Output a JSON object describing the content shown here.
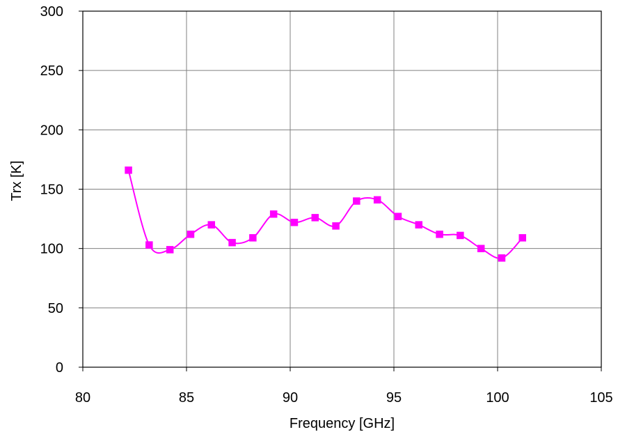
{
  "chart_data": {
    "type": "line",
    "title": "",
    "xlabel": "Frequency [GHz]",
    "ylabel": "Trx [K]",
    "xlim": [
      80,
      105
    ],
    "ylim": [
      0,
      300
    ],
    "xticks": [
      80,
      85,
      90,
      95,
      100,
      105
    ],
    "yticks": [
      0,
      50,
      100,
      150,
      200,
      250,
      300
    ],
    "xtick_labels": [
      "80",
      "85",
      "90",
      "95",
      "100",
      "105"
    ],
    "ytick_labels": [
      "0",
      "50",
      "100",
      "150",
      "200",
      "250",
      "300"
    ],
    "grid": true,
    "legend": "none",
    "smooth": true,
    "series": [
      {
        "color": "#ff00ff",
        "marker": "square",
        "x": [
          82.2,
          83.2,
          84.2,
          85.2,
          86.2,
          87.2,
          88.2,
          89.2,
          90.2,
          91.2,
          92.2,
          93.2,
          94.2,
          95.2,
          96.2,
          97.2,
          98.2,
          99.2,
          100.2,
          101.2
        ],
        "y": [
          166,
          103,
          99,
          112,
          120,
          105,
          109,
          129,
          122,
          126,
          119,
          140,
          141,
          127,
          120,
          112,
          111,
          100,
          92,
          109
        ]
      }
    ]
  }
}
